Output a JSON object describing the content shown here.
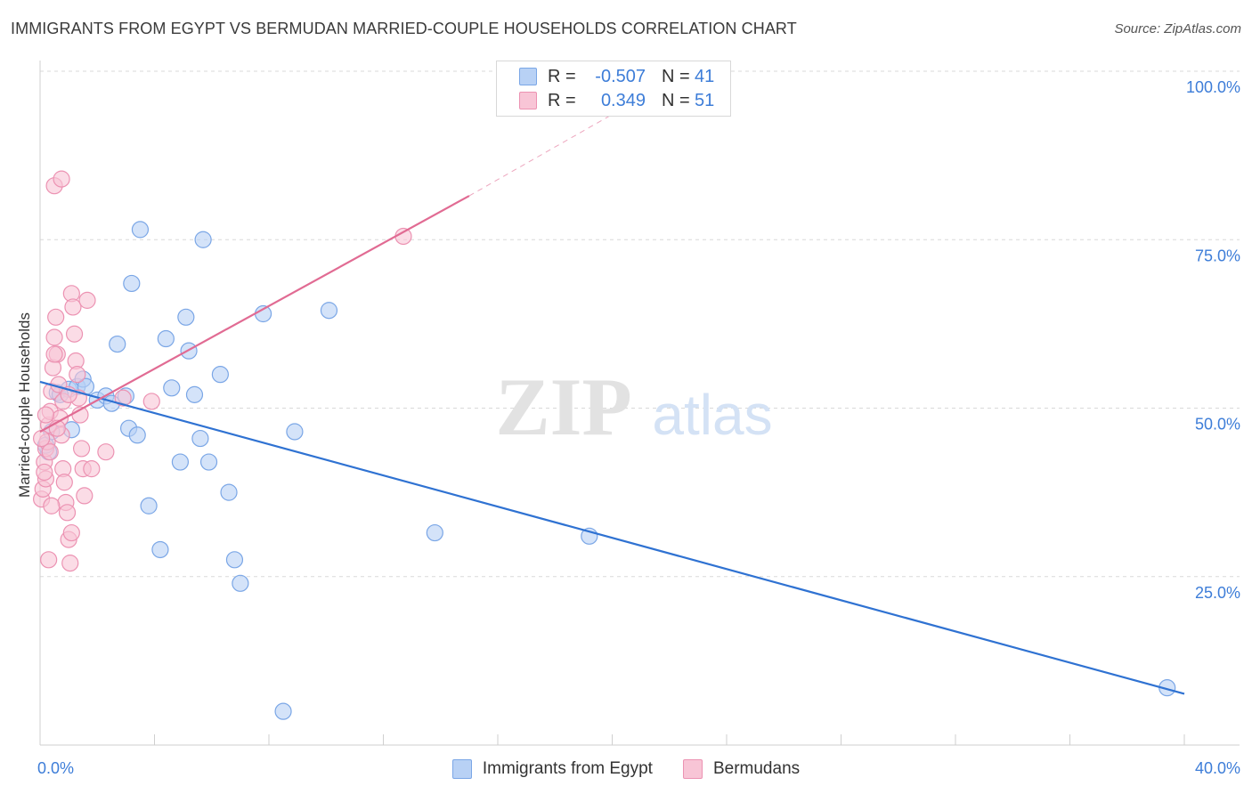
{
  "header": {
    "title": "IMMIGRANTS FROM EGYPT VS BERMUDAN MARRIED-COUPLE HOUSEHOLDS CORRELATION CHART",
    "source": "Source: ZipAtlas.com"
  },
  "watermark": {
    "zip": "ZIP",
    "atlas": "atlas"
  },
  "legend_top": {
    "rows": [
      {
        "r_label": "R =",
        "r_value": "-0.507",
        "n_label": "N =",
        "n_value": "41"
      },
      {
        "r_label": "R =",
        "r_value": "0.349",
        "n_label": "N =",
        "n_value": "51"
      }
    ]
  },
  "legend_bottom": {
    "items": [
      {
        "label": "Immigrants from Egypt"
      },
      {
        "label": "Bermudans"
      }
    ]
  },
  "colors": {
    "blue_fill": "#b8d1f5",
    "blue_stroke": "#7aa6e6",
    "blue_line": "#2f72d2",
    "pink_fill": "#f8c5d6",
    "pink_stroke": "#ec92b2",
    "pink_line": "#e16b93",
    "axis_text": "#3d7dd8",
    "grid": "#d9d9d9"
  },
  "chart_data": {
    "type": "scatter",
    "title": "IMMIGRANTS FROM EGYPT VS BERMUDAN MARRIED-COUPLE HOUSEHOLDS CORRELATION CHART",
    "xlabel": "",
    "ylabel": "Married-couple Households",
    "xlim": [
      0,
      40
    ],
    "ylim": [
      0,
      100
    ],
    "x_ticks": [
      "0.0%",
      "40.0%"
    ],
    "y_ticks": [
      "25.0%",
      "50.0%",
      "75.0%",
      "100.0%"
    ],
    "y_tick_values": [
      25,
      50,
      75,
      100
    ],
    "grid": true,
    "legend_position": "top-center",
    "series": [
      {
        "name": "Immigrants from Egypt",
        "color": "blue",
        "r": -0.507,
        "n": 41,
        "points": [
          [
            0.3,
            43.5
          ],
          [
            0.2,
            44.5
          ],
          [
            0.6,
            52.3
          ],
          [
            1.0,
            52.8
          ],
          [
            1.3,
            53.2
          ],
          [
            1.5,
            54.3
          ],
          [
            2.0,
            51.2
          ],
          [
            2.3,
            51.8
          ],
          [
            2.5,
            50.7
          ],
          [
            2.7,
            59.5
          ],
          [
            3.0,
            51.8
          ],
          [
            3.1,
            47.0
          ],
          [
            3.2,
            68.5
          ],
          [
            3.4,
            46.0
          ],
          [
            3.5,
            76.5
          ],
          [
            3.8,
            35.5
          ],
          [
            4.2,
            29.0
          ],
          [
            4.4,
            60.3
          ],
          [
            4.6,
            53.0
          ],
          [
            4.9,
            42.0
          ],
          [
            5.1,
            63.5
          ],
          [
            5.2,
            58.5
          ],
          [
            5.4,
            52.0
          ],
          [
            5.6,
            45.5
          ],
          [
            5.7,
            75.0
          ],
          [
            5.9,
            42.0
          ],
          [
            6.3,
            55.0
          ],
          [
            6.6,
            37.5
          ],
          [
            6.8,
            27.5
          ],
          [
            7.0,
            24.0
          ],
          [
            7.8,
            64.0
          ],
          [
            8.5,
            5.0
          ],
          [
            8.9,
            46.5
          ],
          [
            10.1,
            64.5
          ],
          [
            13.8,
            31.5
          ],
          [
            19.2,
            31.0
          ],
          [
            39.4,
            8.5
          ],
          [
            0.4,
            46.5
          ],
          [
            0.7,
            52.0
          ],
          [
            1.1,
            46.8
          ],
          [
            1.6,
            53.2
          ]
        ]
      },
      {
        "name": "Bermudans",
        "color": "pink",
        "r": 0.349,
        "n": 51,
        "points": [
          [
            0.05,
            36.5
          ],
          [
            0.1,
            38.0
          ],
          [
            0.15,
            42.0
          ],
          [
            0.2,
            44.0
          ],
          [
            0.25,
            45.0
          ],
          [
            0.3,
            47.5
          ],
          [
            0.35,
            49.5
          ],
          [
            0.4,
            52.5
          ],
          [
            0.45,
            56.0
          ],
          [
            0.5,
            60.5
          ],
          [
            0.55,
            63.5
          ],
          [
            0.6,
            58.0
          ],
          [
            0.65,
            53.5
          ],
          [
            0.7,
            48.5
          ],
          [
            0.75,
            46.0
          ],
          [
            0.8,
            41.0
          ],
          [
            0.85,
            39.0
          ],
          [
            0.9,
            36.0
          ],
          [
            0.95,
            34.5
          ],
          [
            1.0,
            30.5
          ],
          [
            1.05,
            27.0
          ],
          [
            1.1,
            67.0
          ],
          [
            1.15,
            65.0
          ],
          [
            1.2,
            61.0
          ],
          [
            1.25,
            57.0
          ],
          [
            1.3,
            55.0
          ],
          [
            1.35,
            51.5
          ],
          [
            1.4,
            49.0
          ],
          [
            1.45,
            44.0
          ],
          [
            1.5,
            41.0
          ],
          [
            1.55,
            37.0
          ],
          [
            0.5,
            83.0
          ],
          [
            0.75,
            84.0
          ],
          [
            1.1,
            31.5
          ],
          [
            0.3,
            27.5
          ],
          [
            0.2,
            39.5
          ],
          [
            0.35,
            43.5
          ],
          [
            0.4,
            35.5
          ],
          [
            0.6,
            47.0
          ],
          [
            0.8,
            51.0
          ],
          [
            1.65,
            66.0
          ],
          [
            1.8,
            41.0
          ],
          [
            2.3,
            43.5
          ],
          [
            2.9,
            51.5
          ],
          [
            3.9,
            51.0
          ],
          [
            12.7,
            75.5
          ],
          [
            0.05,
            45.5
          ],
          [
            0.15,
            40.5
          ],
          [
            0.5,
            58.0
          ],
          [
            1.0,
            52.0
          ],
          [
            0.2,
            49.0
          ]
        ]
      }
    ],
    "trendlines": [
      {
        "series": "Immigrants from Egypt",
        "x": [
          0,
          40
        ],
        "y": [
          53.9,
          7.6
        ]
      },
      {
        "series": "Bermudans",
        "x": [
          0,
          15
        ],
        "y": [
          46.5,
          81.5
        ],
        "dashed_extension_to": [
          21,
          96
        ]
      }
    ]
  }
}
